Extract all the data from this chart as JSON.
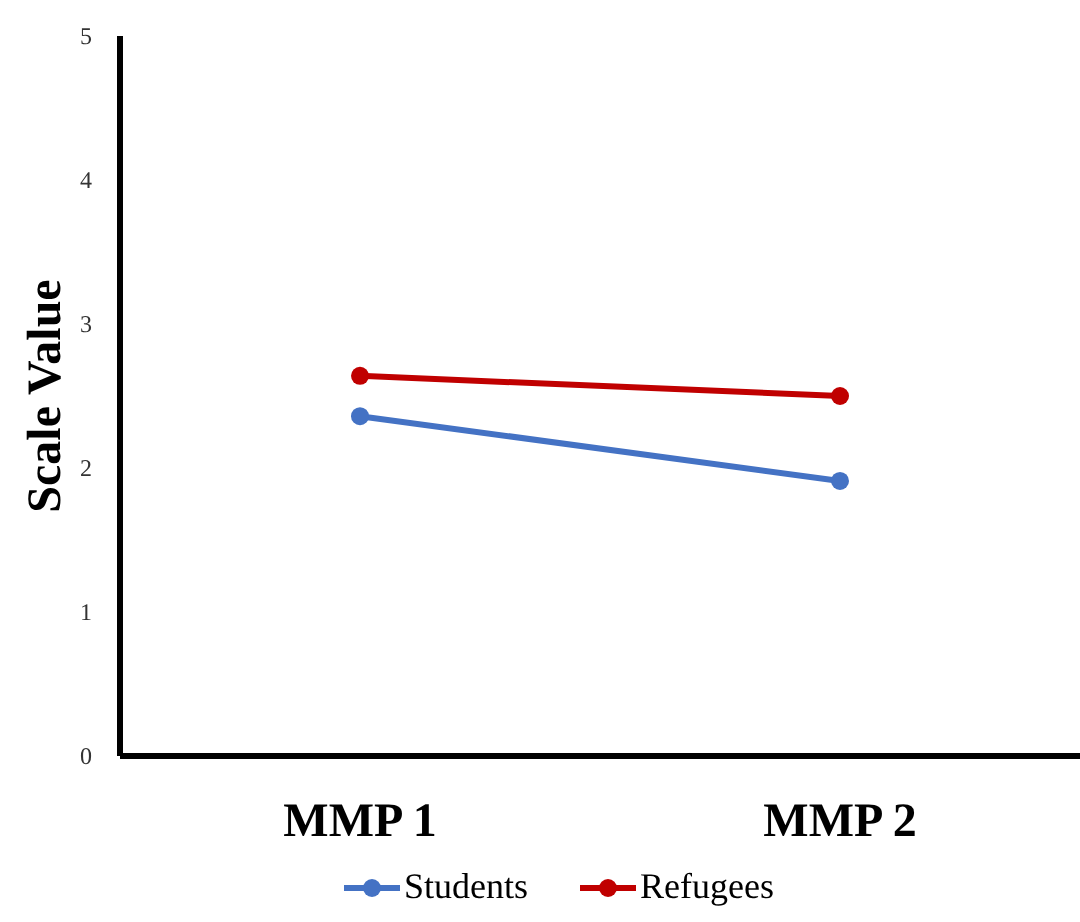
{
  "chart_data": {
    "type": "line",
    "ylabel": "Scale Value",
    "categories": [
      "MMP 1",
      "MMP 2"
    ],
    "series": [
      {
        "name": "Students",
        "color": "#4472c4",
        "values": [
          2.36,
          1.91
        ]
      },
      {
        "name": "Refugees",
        "color": "#c00000",
        "values": [
          2.64,
          2.5
        ]
      }
    ],
    "ylim": [
      0,
      5
    ],
    "yticks": [
      0,
      1,
      2,
      3,
      4,
      5
    ],
    "grid": false,
    "legend": "bottom",
    "marker": "circle"
  }
}
